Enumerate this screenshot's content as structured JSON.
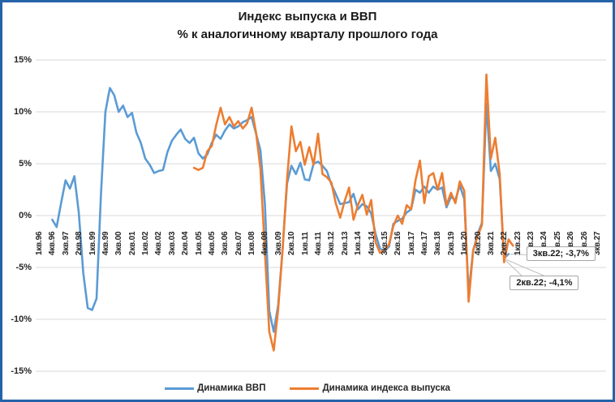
{
  "chart_data": {
    "type": "line",
    "title": "Индекс выпуска и ВВП",
    "subtitle": "% к аналогичному кварталу прошлого года",
    "grid": true,
    "legend_position": "bottom",
    "y_axis": {
      "min": -15,
      "max": 15,
      "step": 5,
      "tick_labels": [
        "15%",
        "10%",
        "5%",
        "0%",
        "-5%",
        "-10%",
        "-15%"
      ],
      "tick_values": [
        15,
        10,
        5,
        0,
        -5,
        -10,
        -15
      ]
    },
    "x_axis": {
      "unit": "quarter",
      "label_every_n_quarters": 3,
      "labels": [
        "1кв.96",
        "4кв.96",
        "3кв.97",
        "2кв.98",
        "1кв.99",
        "4кв.99",
        "3кв.00",
        "2кв.01",
        "1кв.02",
        "4кв.02",
        "3кв.03",
        "2кв.04",
        "1кв.05",
        "4кв.05",
        "3кв.06",
        "2кв.07",
        "1кв.08",
        "4кв.08",
        "3кв.09",
        "2кв.10",
        "1кв.11",
        "4кв.11",
        "3кв.12",
        "2кв.13",
        "1кв.14",
        "4кв.14",
        "3кв.15",
        "2кв.16",
        "1кв.17",
        "4кв.17",
        "3кв.18",
        "2кв.19",
        "1кв.20",
        "4кв.20",
        "3кв.21",
        "2кв.22",
        "1кв.23",
        "4кв.23",
        "3кв.24",
        "2кв.25",
        "1кв.26",
        "4кв.26",
        "3кв.27"
      ]
    },
    "series": [
      {
        "name": "Динамика ВВП",
        "color": "#5B9BD5",
        "start_quarter": "4кв.96",
        "start_index": 3,
        "values": [
          -0.4,
          -1.1,
          1.2,
          3.4,
          2.6,
          3.8,
          0.3,
          -5.5,
          -8.9,
          -9.1,
          -8.0,
          2.0,
          10.0,
          12.3,
          11.6,
          10.0,
          10.6,
          9.5,
          9.9,
          8.0,
          7.0,
          5.5,
          4.9,
          4.1,
          4.3,
          4.4,
          6.1,
          7.2,
          7.8,
          8.3,
          7.4,
          7.0,
          7.5,
          6.0,
          5.5,
          5.9,
          7.0,
          7.8,
          7.4,
          8.2,
          8.8,
          8.4,
          8.6,
          9.0,
          9.2,
          9.5,
          7.9,
          6.3,
          1.1,
          -9.2,
          -11.2,
          -8.6,
          -3.2,
          3.1,
          4.8,
          4.0,
          5.1,
          3.5,
          3.4,
          5.0,
          5.2,
          4.8,
          4.3,
          3.0,
          2.1,
          1.1,
          1.2,
          1.3,
          2.1,
          0.6,
          1.1,
          0.9,
          0.2,
          -1.8,
          -3.2,
          -3.4,
          -3.0,
          -0.8,
          -0.5,
          -0.3,
          0.3,
          0.6,
          2.5,
          2.2,
          2.8,
          2.2,
          2.8,
          2.5,
          2.7,
          0.8,
          1.8,
          1.5,
          2.9,
          1.6,
          -7.5,
          -3.4,
          -1.8,
          -0.7,
          10.8,
          4.3,
          5.0,
          3.5,
          -4.1,
          -3.7
        ]
      },
      {
        "name": "Динамика индекса выпуска",
        "color": "#ED7D31",
        "start_quarter": "4кв.04",
        "start_index": 35,
        "values": [
          4.6,
          4.4,
          4.6,
          6.2,
          6.7,
          8.7,
          10.4,
          8.8,
          9.5,
          8.6,
          9.1,
          8.4,
          8.9,
          10.4,
          8.0,
          4.5,
          -3.5,
          -11.2,
          -13.0,
          -9.0,
          -3.3,
          3.5,
          8.6,
          6.2,
          7.1,
          4.9,
          6.6,
          4.9,
          7.9,
          4.0,
          3.7,
          3.2,
          1.2,
          -0.2,
          1.4,
          2.7,
          -0.4,
          1.0,
          2.0,
          0.1,
          1.5,
          -2.6,
          -3.6,
          -3.3,
          -2.8,
          -1.0,
          0.0,
          -0.8,
          1.0,
          0.6,
          3.4,
          5.3,
          1.2,
          3.8,
          4.1,
          2.5,
          4.1,
          1.0,
          2.2,
          1.2,
          3.3,
          2.4,
          -8.3,
          -3.4,
          -2.0,
          -0.9,
          13.6,
          5.5,
          7.5,
          4.0,
          -4.5,
          -2.3,
          -2.9
        ]
      }
    ],
    "annotations": [
      {
        "text": "3кв.22; -3,7%",
        "series": "Динамика ВВП",
        "quarter": "3кв.22",
        "quarter_index": 106,
        "value": -3.7
      },
      {
        "text": "2кв.22; -4,1%",
        "series": "Динамика ВВП",
        "quarter": "2кв.22",
        "quarter_index": 105,
        "value": -4.1
      }
    ]
  },
  "colors": {
    "gdp_line": "#5B9BD5",
    "output_line": "#ED7D31",
    "gridline": "#D9D9D9",
    "frame_border": "#2563A8",
    "callout_border": "#A6A6A6",
    "leader_line": "#BFBFBF"
  }
}
